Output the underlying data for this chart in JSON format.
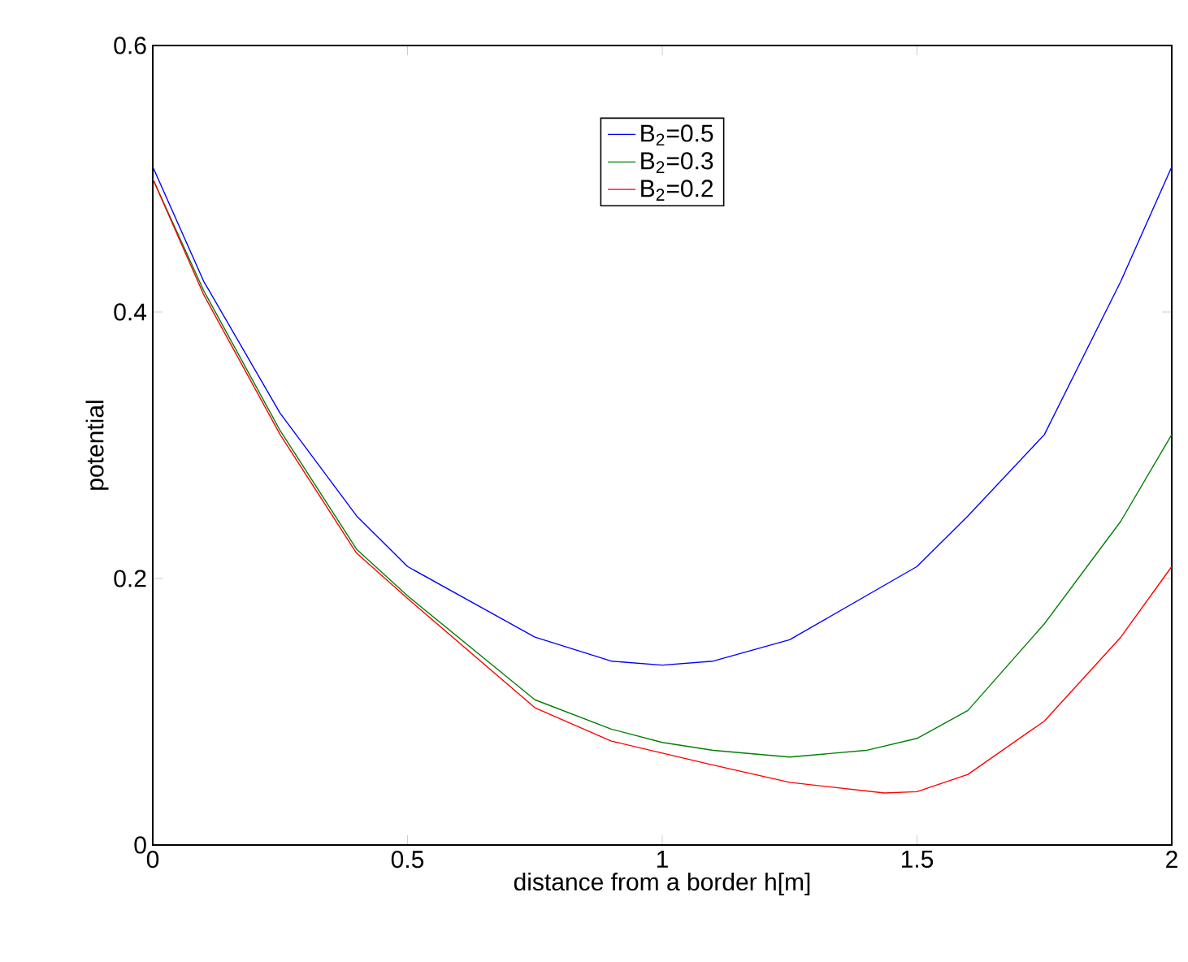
{
  "chart_data": {
    "type": "line",
    "xlabel": "distance from a border h[m]",
    "ylabel": "potential",
    "xlim": [
      0,
      2
    ],
    "ylim": [
      0,
      0.6
    ],
    "xticks": [
      0,
      0.5,
      1,
      1.5,
      2
    ],
    "yticks": [
      0,
      0.2,
      0.4,
      0.6
    ],
    "grid": false,
    "legend": "top",
    "marker": "none",
    "line_style": "solid",
    "series": [
      {
        "name": "B$_{2}$=0.5",
        "color": "#0000ff",
        "x": [
          0,
          0.1,
          0.25,
          0.4,
          0.5,
          0.75,
          0.9,
          1,
          1.1,
          1.25,
          1.5,
          1.6,
          1.75,
          1.9,
          2
        ],
        "values": [
          0.509,
          0.423,
          0.324,
          0.247,
          0.209,
          0.156,
          0.138,
          0.135,
          0.138,
          0.154,
          0.209,
          0.247,
          0.308,
          0.423,
          0.509
        ]
      },
      {
        "name": "B$_{2}$=0.3",
        "color": "#008000",
        "x": [
          0,
          0.1,
          0.25,
          0.4,
          0.5,
          0.75,
          0.9,
          1,
          1.1,
          1.25,
          1.4,
          1.5,
          1.6,
          1.75,
          1.9,
          2
        ],
        "values": [
          0.5,
          0.416,
          0.311,
          0.222,
          0.187,
          0.109,
          0.087,
          0.077,
          0.071,
          0.066,
          0.071,
          0.08,
          0.101,
          0.166,
          0.243,
          0.308
        ]
      },
      {
        "name": "B$_{2}$=0.2",
        "color": "#ff0000",
        "x": [
          0,
          0.1,
          0.25,
          0.4,
          0.5,
          0.75,
          0.9,
          1,
          1.1,
          1.25,
          1.436,
          1.5,
          1.6,
          1.75,
          1.9,
          2
        ],
        "values": [
          0.5,
          0.413,
          0.308,
          0.219,
          0.185,
          0.103,
          0.078,
          0.069,
          0.06,
          0.047,
          0.039,
          0.04,
          0.053,
          0.093,
          0.156,
          0.209
        ]
      }
    ]
  }
}
